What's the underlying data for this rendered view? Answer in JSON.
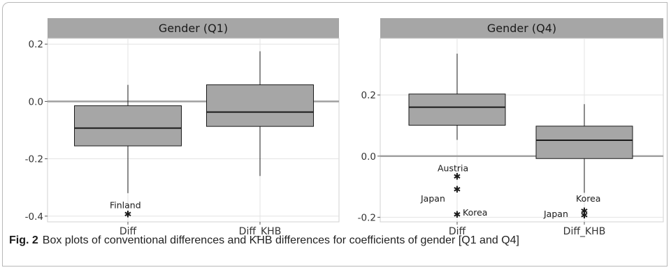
{
  "chart_data": [
    {
      "type": "boxplot",
      "title": "Gender (Q1)",
      "categories": [
        "Diff",
        "Diff_KHB"
      ],
      "ylim": [
        -0.42,
        0.22
      ],
      "yticks": [
        -0.4,
        -0.2,
        0.0,
        0.2
      ],
      "ytick_labels": [
        "-0.4",
        "-0.2",
        "0.0",
        "0.2"
      ],
      "reference_line": 0.0,
      "grid": true,
      "boxes": [
        {
          "category": "Diff",
          "whisker_low": -0.32,
          "q1": -0.155,
          "median": -0.093,
          "q3": -0.015,
          "whisker_high": 0.058
        },
        {
          "category": "Diff_KHB",
          "whisker_low": -0.26,
          "q1": -0.087,
          "median": -0.037,
          "q3": 0.058,
          "whisker_high": 0.175
        }
      ],
      "outliers": [
        {
          "category": "Diff",
          "value": -0.392,
          "label": "Finland"
        }
      ]
    },
    {
      "type": "boxplot",
      "title": "Gender (Q4)",
      "categories": [
        "Diff",
        "Diff_KHB"
      ],
      "ylim": [
        -0.215,
        0.385
      ],
      "yticks": [
        -0.2,
        0.0,
        0.2
      ],
      "ytick_labels": [
        "-0.2",
        "0.0",
        "0.2"
      ],
      "reference_line": 0.0,
      "grid": true,
      "boxes": [
        {
          "category": "Diff",
          "whisker_low": 0.053,
          "q1": 0.101,
          "median": 0.16,
          "q3": 0.203,
          "whisker_high": 0.335
        },
        {
          "category": "Diff_KHB",
          "whisker_low": -0.12,
          "q1": -0.008,
          "median": 0.052,
          "q3": 0.098,
          "whisker_high": 0.17
        }
      ],
      "outliers": [
        {
          "category": "Diff",
          "value": -0.065,
          "label": "Austria"
        },
        {
          "category": "Diff",
          "value": -0.108,
          "label": "Japan"
        },
        {
          "category": "Diff",
          "value": -0.19,
          "label": "Korea"
        },
        {
          "category": "Diff_KHB",
          "value": -0.178,
          "label": "Korea"
        },
        {
          "category": "Diff_KHB",
          "value": -0.192,
          "label": "Japan"
        }
      ]
    }
  ],
  "caption": {
    "label": "Fig. 2",
    "text": "Box plots of conventional differences and KHB differences for coefficients of gender [Q1 and Q4]"
  },
  "colors": {
    "strip": "#a6a6a6",
    "box_fill": "#a6a6a6",
    "grid": "#e3e3e3",
    "panel_border": "#d0d0d0",
    "reference_line": "#a0a0a0",
    "ink": "#1a1a1a"
  }
}
